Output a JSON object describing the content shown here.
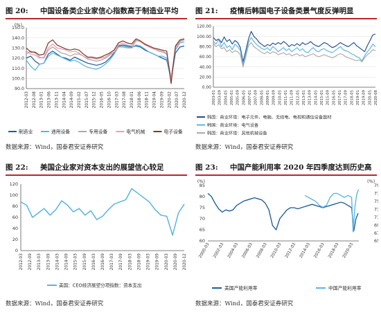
{
  "figures": [
    {
      "number": "图 20:",
      "title": "中国设备类企业家信心指数高于制造业平均",
      "source": "数据来源：Wind，国泰君安证券研究"
    },
    {
      "number": "图 21:",
      "title": "疫情后韩国电子设备类景气度反弹明显",
      "source": "数据来源：Wind，国泰君安证券研究"
    },
    {
      "number": "图 22:",
      "title": "美国企业家对资本支出的展望信心较足",
      "source": "数据来源：Wind，国泰君安证券研究"
    },
    {
      "number": "图 23:",
      "title": "中国产能利用率 2020 年四季度达到历史高",
      "source": "数据来源：Wind，国泰君安证券研究"
    }
  ],
  "chart_data": [
    {
      "type": "line",
      "unit_left": "(%)",
      "ylim": [
        90,
        150
      ],
      "yticks": [
        "90.0",
        "100.0",
        "110.0",
        "120.0",
        "130.0",
        "140.0",
        "150.0"
      ],
      "x_tick_labels": [
        "2012-03",
        "2012-08",
        "2013-01",
        "2013-06",
        "2013-11",
        "2014-04",
        "2014-09",
        "2015-02",
        "2015-07",
        "2015-12",
        "2016-05",
        "2016-10",
        "2017-03",
        "2017-08",
        "2018-01",
        "2018-06",
        "2018-11",
        "2019-04",
        "2019-09",
        "2020-02",
        "2020-07",
        "2020-12"
      ],
      "series": [
        {
          "name": "制造业",
          "color": "#1f5c99",
          "values": [
            120,
            122,
            117,
            114,
            115,
            124,
            127,
            124,
            121,
            120,
            118,
            121,
            119,
            117,
            115,
            114,
            113,
            114,
            116,
            120,
            125,
            132,
            133,
            132,
            131,
            132,
            131,
            128,
            126,
            124,
            122,
            120,
            118,
            99,
            125,
            131,
            132
          ]
        },
        {
          "name": "通用设备",
          "color": "#5ab4e0",
          "values": [
            118,
            112,
            108,
            114,
            115,
            122,
            125,
            123,
            121,
            119,
            117,
            118,
            116,
            113,
            111,
            110,
            109,
            111,
            114,
            118,
            124,
            131,
            132,
            131,
            130,
            133,
            132,
            129,
            126,
            124,
            122,
            122,
            120,
            97,
            128,
            135,
            136
          ]
        },
        {
          "name": "专用设备",
          "color": "#a9a9a9",
          "values": [
            124,
            127,
            125,
            121,
            120,
            128,
            131,
            128,
            125,
            124,
            122,
            124,
            124,
            122,
            119,
            118,
            117,
            118,
            120,
            123,
            126,
            131,
            131,
            130,
            130,
            137,
            137,
            134,
            132,
            130,
            127,
            126,
            124,
            101,
            131,
            137,
            138
          ]
        },
        {
          "name": "电气机械",
          "color": "#e9a0ad",
          "values": [
            127,
            124,
            123,
            120,
            121,
            130,
            134,
            130,
            129,
            128,
            126,
            127,
            125,
            122,
            120,
            120,
            119,
            120,
            121,
            124,
            126,
            133,
            135,
            133,
            132,
            138,
            136,
            133,
            131,
            129,
            128,
            127,
            125,
            100,
            130,
            136,
            138
          ]
        },
        {
          "name": "电子设备",
          "color": "#7b3a2e",
          "values": [
            130,
            126,
            126,
            123,
            124,
            135,
            138,
            133,
            131,
            129,
            128,
            129,
            128,
            124,
            121,
            121,
            120,
            121,
            123,
            125,
            128,
            135,
            137,
            135,
            134,
            139,
            137,
            134,
            132,
            130,
            129,
            128,
            127,
            95,
            132,
            138,
            139
          ]
        }
      ]
    },
    {
      "type": "line",
      "ylim": [
        0,
        120
      ],
      "yticks": [
        "0.00",
        "20.00",
        "40.00",
        "60.00",
        "80.00",
        "100.00",
        "120.00"
      ],
      "x_tick_labels": [
        "2003-01",
        "2003-09",
        "2004-05",
        "2005-01",
        "2005-09",
        "2006-05",
        "2007-01",
        "2007-09",
        "2008-05",
        "2009-01",
        "2009-09",
        "2010-05",
        "2011-01",
        "2011-09",
        "2012-05",
        "2013-01",
        "2013-09",
        "2014-05",
        "2015-01",
        "2015-09",
        "2016-05",
        "2017-01",
        "2017-09",
        "2018-05",
        "2019-01",
        "2019-09",
        "2020-05",
        "2020-08"
      ],
      "series": [
        {
          "name": "韩国：商业环境：电子元件、电脑、无线电、电视和通信设备器材",
          "color": "#1f4e8c",
          "values": [
            98,
            92,
            95,
            88,
            99,
            90,
            94,
            85,
            92,
            88,
            78,
            50,
            72,
            95,
            110,
            100,
            95,
            88,
            84,
            80,
            84,
            82,
            87,
            84,
            88,
            85,
            90,
            86,
            80,
            84,
            82,
            86,
            82,
            88,
            84,
            86,
            90,
            85,
            82,
            80,
            84,
            88,
            86,
            82,
            78,
            80,
            84,
            88,
            85,
            82,
            80,
            84,
            88,
            82,
            78,
            74,
            70,
            82,
            92,
            103,
            105
          ]
        },
        {
          "name": "韩国：商业环境：电气设备",
          "color": "#5ab4e0",
          "values": [
            90,
            85,
            94,
            80,
            88,
            78,
            82,
            74,
            85,
            80,
            72,
            45,
            66,
            88,
            98,
            90,
            84,
            80,
            76,
            74,
            78,
            72,
            80,
            76,
            70,
            74,
            78,
            72,
            76,
            70,
            74,
            78,
            72,
            76,
            70,
            68,
            74,
            78,
            72,
            70,
            74,
            76,
            72,
            70,
            68,
            72,
            76,
            80,
            74,
            72,
            70,
            66,
            64,
            60,
            58,
            52,
            62,
            70,
            76,
            85,
            80
          ]
        },
        {
          "name": "韩国：商业环境：其他机械设备",
          "color": "#a9a9a9",
          "values": [
            86,
            80,
            84,
            76,
            78,
            70,
            74,
            68,
            72,
            70,
            64,
            40,
            60,
            82,
            88,
            80,
            76,
            72,
            68,
            66,
            70,
            66,
            70,
            68,
            64,
            66,
            68,
            64,
            66,
            62,
            64,
            66,
            62,
            64,
            60,
            62,
            64,
            66,
            62,
            60,
            62,
            64,
            62,
            60,
            58,
            60,
            64,
            66,
            64,
            60,
            58,
            56,
            54,
            52,
            54,
            50,
            58,
            64,
            68,
            74,
            72
          ]
        }
      ]
    },
    {
      "type": "line",
      "ylim": [
        0,
        120
      ],
      "yticks": [
        "0",
        "20",
        "40",
        "60",
        "80",
        "100",
        "120"
      ],
      "x_tick_labels": [
        "2012-03",
        "2012-09",
        "2013-03",
        "2013-09",
        "2014-03",
        "2014-09",
        "2015-03",
        "2015-09",
        "2016-03",
        "2016-09",
        "2017-03",
        "2017-09",
        "2018-03",
        "2018-09",
        "2019-03",
        "2019-09",
        "2020-03",
        "2020-09",
        "2020-12"
      ],
      "series": [
        {
          "name": "美国：CEO经济展望分项指数：资本支出",
          "color": "#5ab4e0",
          "values": [
            88,
            82,
            60,
            68,
            76,
            64,
            74,
            90,
            82,
            70,
            76,
            64,
            72,
            56,
            62,
            74,
            84,
            88,
            92,
            112,
            104,
            96,
            88,
            74,
            64,
            62,
            28,
            68,
            84
          ]
        }
      ]
    },
    {
      "type": "line",
      "unit_left": "(%)",
      "unit_right": "(%)",
      "ylim_left": [
        60,
        85
      ],
      "yticks_left": [
        "60",
        "65",
        "70",
        "75",
        "80",
        "85"
      ],
      "ylim_right": [
        65,
        79
      ],
      "yticks_right": [
        "65",
        "67",
        "69",
        "71",
        "73",
        "75",
        "77",
        "79"
      ],
      "x_tick_labels": [
        "2000-03",
        "2002-03",
        "2004-03",
        "2006-03",
        "2008-03",
        "2010-03",
        "2012-03",
        "2014-03",
        "2016-03",
        "2018-03",
        "2020-03"
      ],
      "series": [
        {
          "name": "美国产能利用率",
          "color": "#1f5c99",
          "axis": "left",
          "x": [
            2000,
            2000.5,
            2001,
            2001.5,
            2002,
            2002.5,
            2003,
            2003.5,
            2004,
            2004.5,
            2005,
            2005.5,
            2006,
            2006.5,
            2007,
            2007.5,
            2008,
            2008.5,
            2009,
            2009.5,
            2010,
            2010.5,
            2011,
            2011.5,
            2012,
            2012.5,
            2013,
            2013.5,
            2014,
            2014.5,
            2015,
            2015.5,
            2016,
            2016.5,
            2017,
            2017.5,
            2018,
            2018.5,
            2019,
            2019.5,
            2020,
            2020.3,
            2020.6,
            2020.9
          ],
          "values": [
            81.5,
            80,
            77,
            74.5,
            73,
            74,
            73.5,
            74,
            76,
            77,
            78,
            78.5,
            79,
            79.5,
            79,
            78.5,
            77,
            74,
            67,
            65,
            70,
            72,
            74,
            75,
            75,
            74.5,
            75,
            75.5,
            76,
            76.5,
            76,
            75.5,
            75,
            75.5,
            76,
            76.5,
            77,
            77.5,
            77,
            76,
            75,
            64.5,
            70,
            72.5
          ]
        },
        {
          "name": "中国产能利用率",
          "color": "#5ab4e0",
          "axis": "right",
          "x": [
            2013.5,
            2014,
            2014.5,
            2015,
            2015.5,
            2016,
            2016.5,
            2017,
            2017.5,
            2018,
            2018.5,
            2019,
            2019.5,
            2020,
            2020.2,
            2020.45,
            2020.7,
            2020.95
          ],
          "values": [
            76.5,
            76,
            75.5,
            75,
            74,
            73.5,
            74,
            76,
            77,
            77,
            76.5,
            76,
            76.5,
            76,
            67.3,
            73.5,
            76.7,
            78
          ]
        }
      ]
    }
  ]
}
